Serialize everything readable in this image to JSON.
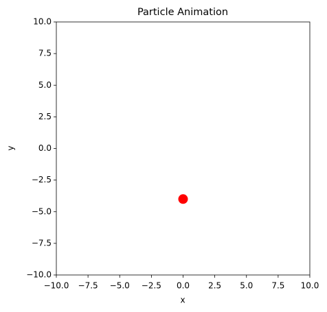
{
  "chart_data": {
    "type": "scatter",
    "title": "Particle Animation",
    "x_label": "x",
    "y_label": "y",
    "x": [
      0
    ],
    "values": [
      -4
    ],
    "color": "#ff0000",
    "xlim": [
      -10,
      10
    ],
    "ylim": [
      -10,
      10
    ],
    "xticks": [
      {
        "value": -10,
        "label": "−10.0"
      },
      {
        "value": -7.5,
        "label": "−7.5"
      },
      {
        "value": -5,
        "label": "−5.0"
      },
      {
        "value": -2.5,
        "label": "−2.5"
      },
      {
        "value": 0,
        "label": "0.0"
      },
      {
        "value": 2.5,
        "label": "2.5"
      },
      {
        "value": 5,
        "label": "5.0"
      },
      {
        "value": 7.5,
        "label": "7.5"
      },
      {
        "value": 10,
        "label": "10.0"
      }
    ],
    "yticks": [
      {
        "value": -10,
        "label": "−10.0"
      },
      {
        "value": -7.5,
        "label": "−7.5"
      },
      {
        "value": -5,
        "label": "−5.0"
      },
      {
        "value": -2.5,
        "label": "−2.5"
      },
      {
        "value": 0,
        "label": "0.0"
      },
      {
        "value": 2.5,
        "label": "2.5"
      },
      {
        "value": 5,
        "label": "5.0"
      },
      {
        "value": 7.5,
        "label": "7.5"
      },
      {
        "value": 10,
        "label": "10.0"
      }
    ],
    "grid": false
  }
}
